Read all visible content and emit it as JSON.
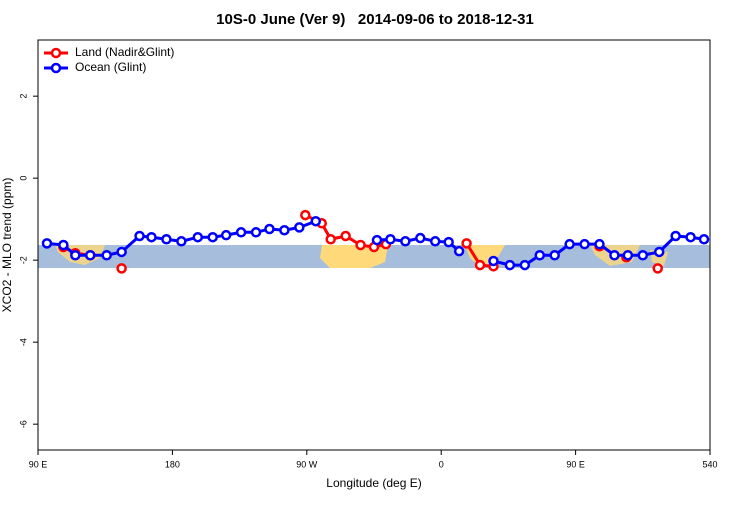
{
  "chart_data": {
    "type": "line",
    "title": "10S-0 June (Ver 9)   2014-09-06 to 2018-12-31",
    "x_label": "Longitude (deg E)",
    "y_label": "XCO2 - MLO trend (ppm)",
    "xlim": [
      90,
      540
    ],
    "xticks": [
      {
        "value": 90,
        "label": "90 E"
      },
      180,
      {
        "value": 270,
        "label": "90 W"
      },
      {
        "value": 360,
        "label": "0"
      },
      {
        "value": 450,
        "label": "90 E"
      },
      540
    ],
    "ylim": [
      -6.63,
      3.37
    ],
    "yticks": [
      -6,
      -4,
      -2,
      0,
      2
    ],
    "legend": "top-left",
    "series": [
      {
        "name": "Land (Nadir&Glint)",
        "color": "#ff0000",
        "x": [
          107,
          115,
          125,
          null,
          146,
          null,
          269,
          280,
          286,
          296,
          306,
          315,
          323,
          null,
          377,
          386,
          395,
          null,
          466,
          null,
          484,
          null,
          505
        ],
        "values": [
          -1.68,
          -1.83,
          -1.88,
          null,
          -2.2,
          null,
          -0.9,
          -1.1,
          -1.49,
          -1.41,
          -1.63,
          -1.68,
          -1.61,
          null,
          -1.59,
          -2.12,
          -2.15,
          null,
          -1.66,
          null,
          -1.93,
          null,
          -2.2
        ]
      },
      {
        "name": "Ocean (Glint)",
        "color": "#0000ff",
        "x": [
          96,
          107,
          115,
          125,
          136,
          146,
          158,
          166,
          176,
          186,
          197,
          207,
          216,
          226,
          236,
          245,
          255,
          265,
          276,
          null,
          317,
          326,
          336,
          346,
          356,
          365,
          372,
          null,
          395,
          406,
          416,
          426,
          436,
          446,
          456,
          466,
          476,
          485,
          495,
          506,
          517,
          527,
          536
        ],
        "values": [
          -1.59,
          -1.63,
          -1.88,
          -1.88,
          -1.88,
          -1.8,
          -1.41,
          -1.44,
          -1.49,
          -1.54,
          -1.44,
          -1.44,
          -1.39,
          -1.32,
          -1.32,
          -1.24,
          -1.27,
          -1.2,
          -1.05,
          null,
          -1.51,
          -1.49,
          -1.54,
          -1.46,
          -1.54,
          -1.56,
          -1.78,
          null,
          -2.02,
          -2.12,
          -2.12,
          -1.88,
          -1.88,
          -1.61,
          -1.61,
          -1.61,
          -1.88,
          -1.88,
          -1.88,
          -1.8,
          -1.41,
          -1.44,
          -1.49
        ]
      }
    ]
  }
}
